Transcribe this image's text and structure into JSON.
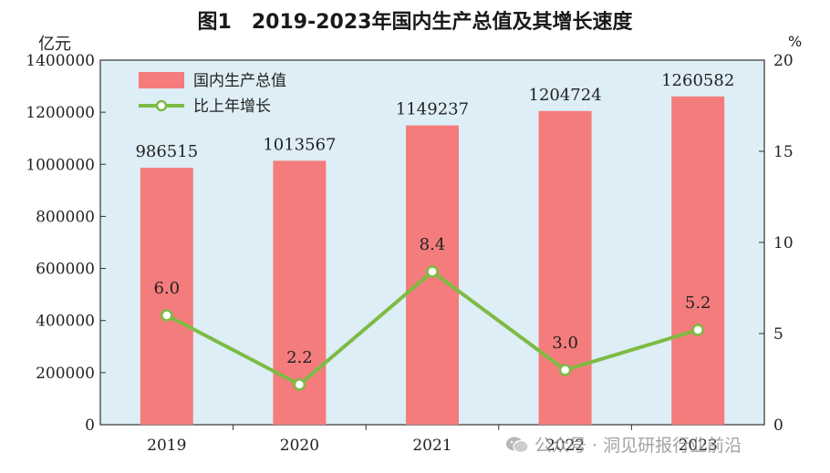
{
  "page": {
    "title": "图1　2019-2023年国内生产总值及其增长速度",
    "left_unit": "亿元",
    "right_unit": "%",
    "watermark": "公众号 · 洞见研报行业前沿"
  },
  "colors": {
    "plot_background": "#ddeef6",
    "bar": "#f47c7c",
    "line": "#7dbb42",
    "marker_fill": "#ffffff"
  },
  "icons": {
    "watermark": "wechat-icon"
  },
  "chart_data": {
    "type": "bar",
    "title": "图1　2019-2023年国内生产总值及其增长速度",
    "categories": [
      "2019",
      "2020",
      "2021",
      "2022",
      "2023"
    ],
    "series": [
      {
        "name": "国内生产总值",
        "type": "bar",
        "axis": "left",
        "values": [
          986515,
          1013567,
          1149237,
          1204724,
          1260582
        ],
        "labels": [
          "986515",
          "1013567",
          "1149237",
          "1204724",
          "1260582"
        ]
      },
      {
        "name": "比上年增长",
        "type": "line",
        "axis": "right",
        "values": [
          6.0,
          2.2,
          8.4,
          3.0,
          5.2
        ],
        "labels": [
          "6.0",
          "2.2",
          "8.4",
          "3.0",
          "5.2"
        ]
      }
    ],
    "left_axis": {
      "unit": "亿元",
      "range": [
        0,
        1400000
      ],
      "ticks": [
        0,
        200000,
        400000,
        600000,
        800000,
        1000000,
        1200000,
        1400000
      ],
      "tick_labels": [
        "0",
        "200000",
        "400000",
        "600000",
        "800000",
        "1000000",
        "1200000",
        "1400000"
      ]
    },
    "right_axis": {
      "unit": "%",
      "range": [
        0,
        20
      ],
      "ticks": [
        0,
        5,
        10,
        15,
        20
      ],
      "tick_labels": [
        "0",
        "5",
        "10",
        "15",
        "20"
      ]
    },
    "grid": false,
    "legend_position": "top-left"
  }
}
